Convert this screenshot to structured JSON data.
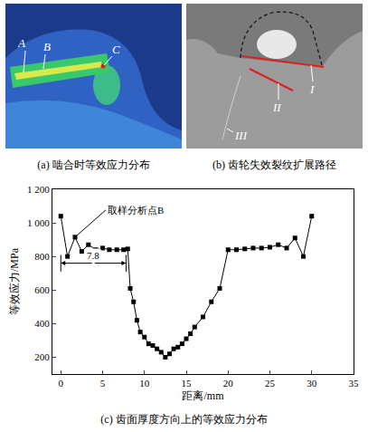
{
  "panels": [
    {
      "caption": "(a) 啮合时等效应力分布",
      "labels": [
        "A",
        "B",
        "C"
      ]
    },
    {
      "caption": "(b) 齿轮失效裂纹扩展路径",
      "labels": [
        "I",
        "II",
        "III"
      ]
    }
  ],
  "chart_data": {
    "type": "line",
    "caption": "(c) 齿面厚度方向上的等效应力分布",
    "x_label": "距离/mm",
    "y_label": "等效应力/MPa",
    "x": [
      0,
      0.8,
      1.7,
      2.5,
      3.3,
      4.2,
      5,
      5.8,
      6.7,
      7.5,
      8,
      8.3,
      8.7,
      9.1,
      9.5,
      10,
      10.5,
      11,
      11.5,
      12,
      12.5,
      13,
      13.5,
      14,
      14.5,
      15,
      15.5,
      16,
      17,
      18,
      19,
      20,
      21,
      22,
      23,
      24,
      25,
      26,
      27,
      28,
      29,
      30
    ],
    "values": [
      1040,
      800,
      915,
      830,
      870,
      840,
      850,
      840,
      840,
      840,
      845,
      610,
      530,
      420,
      350,
      320,
      280,
      270,
      250,
      230,
      200,
      220,
      250,
      260,
      280,
      310,
      340,
      380,
      440,
      530,
      610,
      840,
      840,
      845,
      850,
      850,
      855,
      870,
      850,
      910,
      800,
      1040
    ],
    "color": "#000000",
    "marker": "square",
    "line_style": "solid",
    "grid": false,
    "xlim": [
      -1,
      35
    ],
    "xticks": [
      0,
      5,
      10,
      15,
      20,
      25,
      30,
      35
    ],
    "ylim": [
      100,
      1200
    ],
    "yticks": [
      200,
      400,
      600,
      800,
      {
        "value": 1000,
        "label": "1 000"
      },
      {
        "value": 1200,
        "label": "1 200"
      }
    ],
    "annotations": [
      {
        "text": "取样分析点B",
        "x": 1.7,
        "y": 915
      },
      {
        "text": "7.8",
        "span": [
          0,
          7.8
        ],
        "y": 760
      }
    ]
  }
}
